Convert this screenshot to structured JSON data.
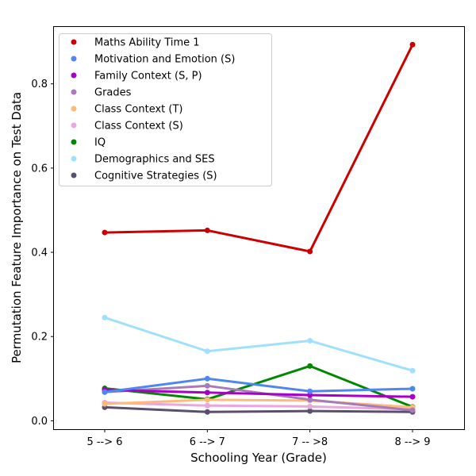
{
  "chart_data": {
    "type": "line",
    "xlabel": "Schooling Year (Grade)",
    "ylabel": "Permutation Feature Importance on Test Data",
    "categories": [
      "5 --> 6",
      "6 --> 7",
      "7 -- >8",
      "8 --> 9"
    ],
    "ylim": [
      -0.02,
      0.935
    ],
    "yticks": [
      0.0,
      0.2,
      0.4,
      0.6,
      0.8
    ],
    "ytick_labels": [
      "0.0",
      "0.2",
      "0.4",
      "0.6",
      "0.8"
    ],
    "grid": false,
    "legend_position": "top-left",
    "series": [
      {
        "name": "Maths Ability Time 1",
        "color": "#cc0000",
        "values": [
          0.447,
          0.452,
          0.402,
          0.893
        ]
      },
      {
        "name": "Motivation and Emotion (S)",
        "color": "#4f87f0",
        "values": [
          0.068,
          0.1,
          0.07,
          0.076
        ]
      },
      {
        "name": "Family Context (S, P)",
        "color": "#a800c8",
        "values": [
          0.073,
          0.067,
          0.061,
          0.057
        ]
      },
      {
        "name": "Grades",
        "color": "#a67bb8",
        "values": [
          0.068,
          0.083,
          0.05,
          0.025
        ]
      },
      {
        "name": "Class Context (T)",
        "color": "#ffba7a",
        "values": [
          0.04,
          0.05,
          0.048,
          0.032
        ]
      },
      {
        "name": "Class Context (S)",
        "color": "#e8a8dc",
        "values": [
          0.043,
          0.036,
          0.034,
          0.027
        ]
      },
      {
        "name": "IQ",
        "color": "#008800",
        "values": [
          0.077,
          0.051,
          0.13,
          0.033
        ]
      },
      {
        "name": "Demographics and SES",
        "color": "#a0e0ff",
        "values": [
          0.245,
          0.165,
          0.19,
          0.119
        ]
      },
      {
        "name": "Cognitive Strategies (S)",
        "color": "#5a4f6e",
        "values": [
          0.032,
          0.021,
          0.023,
          0.021
        ]
      }
    ]
  }
}
